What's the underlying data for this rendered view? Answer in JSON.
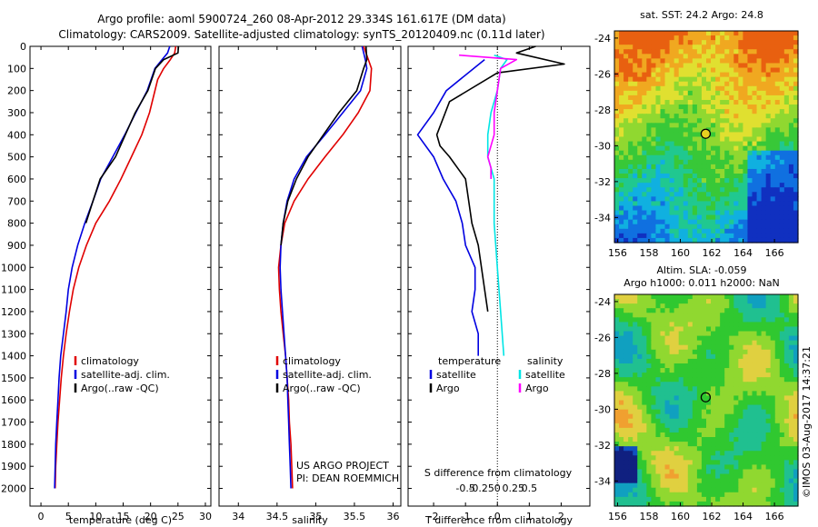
{
  "header": {
    "line1": "Argo profile: aoml 5900724_260 08-Apr-2012 29.334S 161.617E (DM data)",
    "line2": "Climatology: CARS2009. Satellite-adjusted climatology: synTS_20120409.nc (0.11d later)"
  },
  "colors": {
    "climatology": "#e00000",
    "satellite": "#0000e0",
    "argo": "#000000",
    "argo_salinity": "#ff00ff",
    "satellite_salinity": "#00e5e5"
  },
  "chart_data": [
    {
      "type": "line",
      "xlabel": "temperature (deg C)",
      "ylabel": "",
      "xlim": [
        -2,
        31
      ],
      "ylim": [
        2080,
        0
      ],
      "xticks": [
        0,
        5,
        10,
        15,
        20,
        25,
        30
      ],
      "yticks": [
        0,
        100,
        200,
        300,
        400,
        500,
        600,
        700,
        800,
        900,
        1000,
        1100,
        1200,
        1300,
        1400,
        1500,
        1600,
        1700,
        1800,
        1900,
        2000
      ],
      "legend": [
        "climatology",
        "satellite-adj. clim.",
        "Argo(..raw -QC)"
      ],
      "series": [
        {
          "name": "climatology",
          "color": "#e00000",
          "points": [
            [
              24.6,
              0
            ],
            [
              24.4,
              30
            ],
            [
              23.6,
              60
            ],
            [
              22.4,
              100
            ],
            [
              21.3,
              150
            ],
            [
              19.8,
              300
            ],
            [
              18.4,
              400
            ],
            [
              16.5,
              500
            ],
            [
              14.6,
              600
            ],
            [
              12.5,
              700
            ],
            [
              10.0,
              800
            ],
            [
              8.3,
              900
            ],
            [
              6.9,
              1000
            ],
            [
              5.9,
              1100
            ],
            [
              5.2,
              1200
            ],
            [
              4.6,
              1300
            ],
            [
              4.1,
              1400
            ],
            [
              3.7,
              1500
            ],
            [
              3.4,
              1600
            ],
            [
              3.1,
              1700
            ],
            [
              2.9,
              1800
            ],
            [
              2.7,
              1900
            ],
            [
              2.6,
              2000
            ]
          ]
        },
        {
          "name": "satellite-adj. clim.",
          "color": "#0000e0",
          "points": [
            [
              23.5,
              0
            ],
            [
              23.1,
              30
            ],
            [
              22.1,
              60
            ],
            [
              20.8,
              100
            ],
            [
              19.4,
              200
            ],
            [
              17.3,
              300
            ],
            [
              15.3,
              400
            ],
            [
              13.1,
              500
            ],
            [
              10.9,
              600
            ],
            [
              9.5,
              700
            ],
            [
              8.0,
              800
            ],
            [
              6.7,
              900
            ],
            [
              5.7,
              1000
            ],
            [
              5.0,
              1100
            ],
            [
              4.6,
              1200
            ],
            [
              4.1,
              1300
            ],
            [
              3.6,
              1400
            ],
            [
              3.3,
              1500
            ],
            [
              3.1,
              1600
            ],
            [
              2.9,
              1700
            ],
            [
              2.7,
              1800
            ],
            [
              2.6,
              1900
            ],
            [
              2.5,
              2000
            ]
          ]
        },
        {
          "name": "Argo(..raw -QC)",
          "color": "#000000",
          "points": [
            [
              25.1,
              0
            ],
            [
              25.0,
              30
            ],
            [
              22.4,
              60
            ],
            [
              20.9,
              100
            ],
            [
              19.5,
              200
            ],
            [
              17.2,
              300
            ],
            [
              15.4,
              400
            ],
            [
              13.6,
              500
            ],
            [
              10.8,
              600
            ],
            [
              9.5,
              700
            ],
            [
              8.2,
              800
            ]
          ]
        }
      ]
    },
    {
      "type": "line",
      "xlabel": "salinity",
      "ylabel": "",
      "xlim": [
        33.75,
        36.1
      ],
      "ylim": [
        2080,
        0
      ],
      "xticks": [
        34,
        34.5,
        35,
        35.5,
        36
      ],
      "legend": [
        "climatology",
        "satellite-adj. clim.",
        "Argo(..raw -QC)"
      ],
      "annotations": [
        "US ARGO PROJECT",
        "PI: DEAN ROEMMICH"
      ],
      "series": [
        {
          "name": "climatology",
          "color": "#e00000",
          "points": [
            [
              35.62,
              0
            ],
            [
              35.68,
              60
            ],
            [
              35.72,
              100
            ],
            [
              35.7,
              200
            ],
            [
              35.55,
              300
            ],
            [
              35.35,
              400
            ],
            [
              35.12,
              500
            ],
            [
              34.9,
              600
            ],
            [
              34.72,
              700
            ],
            [
              34.6,
              800
            ],
            [
              34.55,
              900
            ],
            [
              34.52,
              1000
            ],
            [
              34.53,
              1100
            ],
            [
              34.55,
              1200
            ],
            [
              34.58,
              1300
            ],
            [
              34.61,
              1400
            ],
            [
              34.63,
              1500
            ],
            [
              34.65,
              1600
            ],
            [
              34.66,
              1700
            ],
            [
              34.68,
              1800
            ],
            [
              34.69,
              1900
            ],
            [
              34.7,
              2000
            ]
          ]
        },
        {
          "name": "satellite-adj. clim.",
          "color": "#0000e0",
          "points": [
            [
              35.6,
              0
            ],
            [
              35.64,
              60
            ],
            [
              35.66,
              100
            ],
            [
              35.58,
              200
            ],
            [
              35.35,
              300
            ],
            [
              35.12,
              400
            ],
            [
              34.88,
              500
            ],
            [
              34.72,
              600
            ],
            [
              34.63,
              700
            ],
            [
              34.58,
              800
            ],
            [
              34.55,
              900
            ],
            [
              34.54,
              1000
            ],
            [
              34.55,
              1100
            ],
            [
              34.57,
              1200
            ],
            [
              34.59,
              1300
            ],
            [
              34.61,
              1400
            ],
            [
              34.63,
              1500
            ],
            [
              34.64,
              1600
            ],
            [
              34.65,
              1700
            ],
            [
              34.66,
              1800
            ],
            [
              34.67,
              1900
            ],
            [
              34.68,
              2000
            ]
          ]
        },
        {
          "name": "Argo(..raw -QC)",
          "color": "#000000",
          "points": [
            [
              35.65,
              0
            ],
            [
              35.66,
              60
            ],
            [
              35.62,
              100
            ],
            [
              35.53,
              200
            ],
            [
              35.3,
              300
            ],
            [
              35.1,
              400
            ],
            [
              34.9,
              500
            ],
            [
              34.75,
              600
            ],
            [
              34.64,
              700
            ],
            [
              34.58,
              800
            ],
            [
              34.55,
              900
            ]
          ]
        }
      ]
    },
    {
      "type": "line",
      "xlabel": "T difference from climatology",
      "xlabel_top": "S difference from climatology",
      "xlim": [
        -2.8,
        2.9
      ],
      "ylim": [
        2080,
        0
      ],
      "xticks": [
        -2,
        -1,
        0,
        1,
        2
      ],
      "xticks_top": [
        "-0.5",
        "-0.25",
        "0",
        "0.25",
        "0.5"
      ],
      "legend": [
        "temperature",
        "satellite",
        "Argo",
        "salinity",
        "satellite",
        "Argo"
      ],
      "series": [
        {
          "name": "satellite",
          "color": "#0000e0",
          "points": [
            [
              -0.4,
              60
            ],
            [
              -1.6,
              200
            ],
            [
              -2.0,
              300
            ],
            [
              -2.5,
              400
            ],
            [
              -2.0,
              500
            ],
            [
              -1.7,
              600
            ],
            [
              -1.3,
              700
            ],
            [
              -1.1,
              800
            ],
            [
              -1.0,
              900
            ],
            [
              -0.7,
              1000
            ],
            [
              -0.7,
              1100
            ],
            [
              -0.8,
              1200
            ],
            [
              -0.6,
              1300
            ],
            [
              -0.6,
              1400
            ]
          ]
        },
        {
          "name": "Argo",
          "color": "#000000",
          "points": [
            [
              1.2,
              0
            ],
            [
              0.6,
              30
            ],
            [
              2.1,
              80
            ],
            [
              0.0,
              120
            ],
            [
              -1.5,
              250
            ],
            [
              -1.9,
              400
            ],
            [
              -1.8,
              450
            ],
            [
              -1.5,
              500
            ],
            [
              -1.0,
              600
            ],
            [
              -0.9,
              700
            ],
            [
              -0.8,
              800
            ],
            [
              -0.6,
              900
            ],
            [
              -0.5,
              1000
            ],
            [
              -0.4,
              1100
            ],
            [
              -0.3,
              1200
            ]
          ]
        },
        {
          "name": "satellite",
          "color": "#00e5e5",
          "points": [
            [
              -0.1,
              40
            ],
            [
              0.3,
              60
            ],
            [
              0.1,
              100
            ],
            [
              0.0,
              200
            ],
            [
              -0.2,
              300
            ],
            [
              -0.3,
              400
            ],
            [
              -0.3,
              500
            ],
            [
              -0.1,
              600
            ],
            [
              -0.1,
              800
            ],
            [
              0.0,
              1000
            ],
            [
              0.1,
              1200
            ],
            [
              0.2,
              1400
            ]
          ]
        },
        {
          "name": "Argo",
          "color": "#ff00ff",
          "points": [
            [
              -1.2,
              40
            ],
            [
              0.6,
              60
            ],
            [
              0.1,
              100
            ],
            [
              0.0,
              200
            ],
            [
              -0.1,
              300
            ],
            [
              -0.1,
              400
            ],
            [
              -0.3,
              500
            ],
            [
              -0.2,
              550
            ],
            [
              -0.2,
              600
            ]
          ]
        }
      ]
    },
    {
      "type": "heatmap",
      "title": "sat. SST: 24.2  Argo: 24.8",
      "xlim": [
        155.8,
        167.5
      ],
      "ylim": [
        -35.4,
        -23.6
      ],
      "xticks": [
        156,
        158,
        160,
        162,
        164,
        166
      ],
      "yticks": [
        -24,
        -26,
        -28,
        -30,
        -32,
        -34
      ],
      "marker": {
        "lon": 161.617,
        "lat": -29.334
      },
      "colors": [
        "#1030c0",
        "#1070e0",
        "#10b0e0",
        "#20c890",
        "#38c838",
        "#90d830",
        "#e0e030",
        "#f0a820",
        "#e86010"
      ]
    },
    {
      "type": "heatmap",
      "title": "Altim. SLA: -0.059",
      "subtitle": "Argo h1000: 0.011 h2000: NaN",
      "xlim": [
        155.8,
        167.5
      ],
      "ylim": [
        -35.4,
        -23.6
      ],
      "xticks": [
        156,
        158,
        160,
        162,
        164,
        166
      ],
      "yticks": [
        -24,
        -26,
        -28,
        -30,
        -32,
        -34
      ],
      "marker": {
        "lon": 161.617,
        "lat": -29.334
      },
      "colors": [
        "#102080",
        "#1050c0",
        "#10a0c0",
        "#20c090",
        "#30c830",
        "#90d830",
        "#e0d040",
        "#f0a030",
        "#d06020"
      ]
    }
  ],
  "footer": {
    "credit": "©IMOS 03-Aug-2017 14:37:21"
  }
}
